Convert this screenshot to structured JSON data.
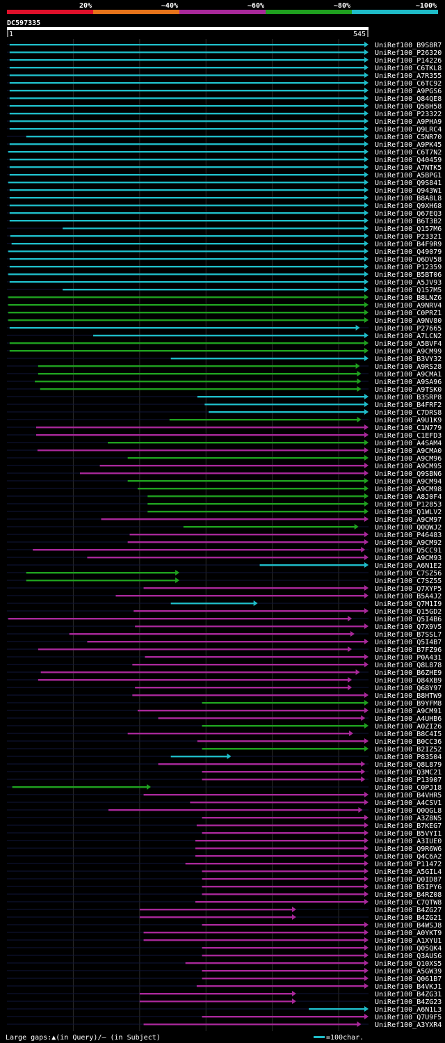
{
  "chart_data": {
    "type": "alignment-overview",
    "query_id": "DC597335",
    "query_start": "1",
    "query_end": "545",
    "query_length": 545,
    "gridlines_at": [
      100,
      200,
      300,
      400,
      500
    ],
    "legend": [
      {
        "label": "20%",
        "color": "#e0102a"
      },
      {
        "label": "~40%",
        "color": "#e6731a"
      },
      {
        "label": "~60%",
        "color": "#a8289a"
      },
      {
        "label": "~80%",
        "color": "#1fa01f"
      },
      {
        "label": "~100%",
        "color": "#1fbcc8"
      }
    ],
    "colors": {
      "cyan": "#1fbcc8",
      "green": "#1fa01f",
      "magenta": "#a8289a",
      "background": "#000000",
      "grid": "#2a2a2a"
    },
    "footer_text": "Large gaps:▲(in Query)/– (in Subject)",
    "scale_text": "=100char.",
    "hits": [
      {
        "name": "UniRef100_B9S8R7",
        "c": "cyan",
        "s": 4,
        "e": 545
      },
      {
        "name": "UniRef100_P26320",
        "c": "cyan",
        "s": 4,
        "e": 545
      },
      {
        "name": "UniRef100_P14226",
        "c": "cyan",
        "s": 4,
        "e": 545
      },
      {
        "name": "UniRef100_C6TKL8",
        "c": "cyan",
        "s": 4,
        "e": 545
      },
      {
        "name": "UniRef100_A7R355",
        "c": "cyan",
        "s": 4,
        "e": 545
      },
      {
        "name": "UniRef100_C6TC92",
        "c": "cyan",
        "s": 4,
        "e": 545
      },
      {
        "name": "UniRef100_A9PGS6",
        "c": "cyan",
        "s": 4,
        "e": 545
      },
      {
        "name": "UniRef100_Q84QE8",
        "c": "cyan",
        "s": 4,
        "e": 545
      },
      {
        "name": "UniRef100_Q58H58",
        "c": "cyan",
        "s": 4,
        "e": 545
      },
      {
        "name": "UniRef100_P23322",
        "c": "cyan",
        "s": 4,
        "e": 545
      },
      {
        "name": "UniRef100_A9PHA9",
        "c": "cyan",
        "s": 4,
        "e": 545
      },
      {
        "name": "UniRef100_Q9LRC4",
        "c": "cyan",
        "s": 4,
        "e": 545
      },
      {
        "name": "UniRef100_C5NR70",
        "c": "cyan",
        "s": 29,
        "e": 545
      },
      {
        "name": "UniRef100_A9PK45",
        "c": "cyan",
        "s": 4,
        "e": 545
      },
      {
        "name": "UniRef100_C6T7N2",
        "c": "cyan",
        "s": 2,
        "e": 545
      },
      {
        "name": "UniRef100_Q40459",
        "c": "cyan",
        "s": 4,
        "e": 545
      },
      {
        "name": "UniRef100_A7NTK5",
        "c": "cyan",
        "s": 4,
        "e": 545
      },
      {
        "name": "UniRef100_A5BPG1",
        "c": "cyan",
        "s": 4,
        "e": 545
      },
      {
        "name": "UniRef100_Q9S841",
        "c": "cyan",
        "s": 2,
        "e": 545
      },
      {
        "name": "UniRef100_Q943W1",
        "c": "cyan",
        "s": 4,
        "e": 545
      },
      {
        "name": "UniRef100_B8A8L8",
        "c": "cyan",
        "s": 4,
        "e": 545
      },
      {
        "name": "UniRef100_Q9XH68",
        "c": "cyan",
        "s": 4,
        "e": 545
      },
      {
        "name": "UniRef100_Q67EQ3",
        "c": "cyan",
        "s": 4,
        "e": 545
      },
      {
        "name": "UniRef100_B6T3B2",
        "c": "cyan",
        "s": 4,
        "e": 545
      },
      {
        "name": "UniRef100_Q157M6",
        "c": "cyan",
        "s": 84,
        "e": 545
      },
      {
        "name": "UniRef100_P23321",
        "c": "cyan",
        "s": 5,
        "e": 545
      },
      {
        "name": "UniRef100_B4F9R9",
        "c": "cyan",
        "s": 7,
        "e": 545
      },
      {
        "name": "UniRef100_Q49079",
        "c": "cyan",
        "s": 2,
        "e": 545
      },
      {
        "name": "UniRef100_Q6DV58",
        "c": "cyan",
        "s": 4,
        "e": 545
      },
      {
        "name": "UniRef100_P12359",
        "c": "cyan",
        "s": 4,
        "e": 545
      },
      {
        "name": "UniRef100_B5BT06",
        "c": "cyan",
        "s": 2,
        "e": 545
      },
      {
        "name": "UniRef100_A5JV93",
        "c": "cyan",
        "s": 4,
        "e": 545
      },
      {
        "name": "UniRef100_Q157M5",
        "c": "cyan",
        "s": 84,
        "e": 545
      },
      {
        "name": "UniRef100_B8LNZ6",
        "c": "green",
        "s": 2,
        "e": 545
      },
      {
        "name": "UniRef100_A9NRV4",
        "c": "green",
        "s": 2,
        "e": 545
      },
      {
        "name": "UniRef100_C0PRZ1",
        "c": "green",
        "s": 2,
        "e": 545
      },
      {
        "name": "UniRef100_A9NV80",
        "c": "green",
        "s": 2,
        "e": 545
      },
      {
        "name": "UniRef100_P27665",
        "c": "cyan",
        "s": 4,
        "e": 532
      },
      {
        "name": "UniRef100_A7LCN2",
        "c": "cyan",
        "s": 130,
        "e": 545
      },
      {
        "name": "UniRef100_A5BVF4",
        "c": "green",
        "s": 4,
        "e": 545
      },
      {
        "name": "UniRef100_A9CM99",
        "c": "green",
        "s": 4,
        "e": 545
      },
      {
        "name": "UniRef100_B3VY32",
        "c": "cyan",
        "s": 247,
        "e": 545
      },
      {
        "name": "UniRef100_A9RS28",
        "c": "green",
        "s": 47,
        "e": 532
      },
      {
        "name": "UniRef100_A9CMA1",
        "c": "green",
        "s": 47,
        "e": 534
      },
      {
        "name": "UniRef100_A9SA96",
        "c": "green",
        "s": 42,
        "e": 534
      },
      {
        "name": "UniRef100_A9TSK0",
        "c": "green",
        "s": 50,
        "e": 534
      },
      {
        "name": "UniRef100_B3SRP8",
        "c": "cyan",
        "s": 287,
        "e": 545
      },
      {
        "name": "UniRef100_B4FRF2",
        "c": "cyan",
        "s": 298,
        "e": 545
      },
      {
        "name": "UniRef100_C7DRS8",
        "c": "cyan",
        "s": 304,
        "e": 545
      },
      {
        "name": "UniRef100_A9U1K9",
        "c": "green",
        "s": 245,
        "e": 534
      },
      {
        "name": "UniRef100_C1N779",
        "c": "magenta",
        "s": 44,
        "e": 545
      },
      {
        "name": "UniRef100_C1EFD3",
        "c": "magenta",
        "s": 44,
        "e": 545
      },
      {
        "name": "UniRef100_A4SAM4",
        "c": "green",
        "s": 152,
        "e": 545
      },
      {
        "name": "UniRef100_A9CMA0",
        "c": "magenta",
        "s": 46,
        "e": 545
      },
      {
        "name": "UniRef100_A9CM96",
        "c": "green",
        "s": 182,
        "e": 545
      },
      {
        "name": "UniRef100_A9CM95",
        "c": "magenta",
        "s": 140,
        "e": 545
      },
      {
        "name": "UniRef100_Q9SBN6",
        "c": "magenta",
        "s": 110,
        "e": 545
      },
      {
        "name": "UniRef100_A9CM94",
        "c": "green",
        "s": 182,
        "e": 545
      },
      {
        "name": "UniRef100_A9CM98",
        "c": "green",
        "s": 197,
        "e": 545
      },
      {
        "name": "UniRef100_A8J0F4",
        "c": "green",
        "s": 212,
        "e": 545
      },
      {
        "name": "UniRef100_P12853",
        "c": "green",
        "s": 212,
        "e": 545
      },
      {
        "name": "UniRef100_Q1WLV2",
        "c": "green",
        "s": 212,
        "e": 545
      },
      {
        "name": "UniRef100_A9CM97",
        "c": "magenta",
        "s": 142,
        "e": 545
      },
      {
        "name": "UniRef100_Q0QWJ2",
        "c": "green",
        "s": 266,
        "e": 530
      },
      {
        "name": "UniRef100_P46483",
        "c": "magenta",
        "s": 185,
        "e": 545
      },
      {
        "name": "UniRef100_A9CM92",
        "c": "magenta",
        "s": 182,
        "e": 545
      },
      {
        "name": "UniRef100_Q5CC91",
        "c": "magenta",
        "s": 39,
        "e": 540
      },
      {
        "name": "UniRef100_A9CM93",
        "c": "magenta",
        "s": 121,
        "e": 545
      },
      {
        "name": "UniRef100_A6N1E2",
        "c": "cyan",
        "s": 381,
        "e": 545
      },
      {
        "name": "UniRef100_C7SZ56",
        "c": "green",
        "s": 29,
        "e": 260
      },
      {
        "name": "UniRef100_C7SZ55",
        "c": "green",
        "s": 29,
        "e": 260
      },
      {
        "name": "UniRef100_Q7XYP5",
        "c": "magenta",
        "s": 206,
        "e": 545
      },
      {
        "name": "UniRef100_B5A4J2",
        "c": "magenta",
        "s": 164,
        "e": 545
      },
      {
        "name": "UniRef100_Q7M1I9",
        "c": "cyan",
        "s": 247,
        "e": 378
      },
      {
        "name": "UniRef100_Q15GD2",
        "c": "magenta",
        "s": 191,
        "e": 545
      },
      {
        "name": "UniRef100_Q5I4B6",
        "c": "magenta",
        "s": 2,
        "e": 520
      },
      {
        "name": "UniRef100_Q7X9V5",
        "c": "magenta",
        "s": 193,
        "e": 545
      },
      {
        "name": "UniRef100_B7SSL7",
        "c": "magenta",
        "s": 94,
        "e": 524
      },
      {
        "name": "UniRef100_Q5I4B7",
        "c": "magenta",
        "s": 121,
        "e": 545
      },
      {
        "name": "UniRef100_B7FZ96",
        "c": "magenta",
        "s": 47,
        "e": 520
      },
      {
        "name": "UniRef100_P0A431",
        "c": "magenta",
        "s": 208,
        "e": 545
      },
      {
        "name": "UniRef100_Q8L878",
        "c": "magenta",
        "s": 189,
        "e": 545
      },
      {
        "name": "UniRef100_B6ZHE9",
        "c": "magenta",
        "s": 51,
        "e": 532
      },
      {
        "name": "UniRef100_Q84XB9",
        "c": "magenta",
        "s": 47,
        "e": 520
      },
      {
        "name": "UniRef100_Q68Y97",
        "c": "magenta",
        "s": 193,
        "e": 520
      },
      {
        "name": "UniRef100_B8HTW9",
        "c": "magenta",
        "s": 189,
        "e": 545
      },
      {
        "name": "UniRef100_B9YFM8",
        "c": "green",
        "s": 294,
        "e": 545
      },
      {
        "name": "UniRef100_A9CM91",
        "c": "magenta",
        "s": 197,
        "e": 545
      },
      {
        "name": "UniRef100_A4UHB6",
        "c": "magenta",
        "s": 228,
        "e": 540
      },
      {
        "name": "UniRef100_A0ZI26",
        "c": "green",
        "s": 294,
        "e": 545
      },
      {
        "name": "UniRef100_B8C4I5",
        "c": "magenta",
        "s": 182,
        "e": 522
      },
      {
        "name": "UniRef100_B0CC36",
        "c": "magenta",
        "s": 287,
        "e": 545
      },
      {
        "name": "UniRef100_B2IZ52",
        "c": "green",
        "s": 294,
        "e": 545
      },
      {
        "name": "UniRef100_P83504",
        "c": "cyan",
        "s": 247,
        "e": 338
      },
      {
        "name": "UniRef100_Q8L879",
        "c": "magenta",
        "s": 228,
        "e": 540
      },
      {
        "name": "UniRef100_Q3MC21",
        "c": "magenta",
        "s": 294,
        "e": 540
      },
      {
        "name": "UniRef100_P13907",
        "c": "magenta",
        "s": 294,
        "e": 540
      },
      {
        "name": "UniRef100_C0PJ18",
        "c": "green",
        "s": 8,
        "e": 217
      },
      {
        "name": "UniRef100_B4VHR5",
        "c": "magenta",
        "s": 206,
        "e": 545
      },
      {
        "name": "UniRef100_A4CSV1",
        "c": "magenta",
        "s": 276,
        "e": 545
      },
      {
        "name": "UniRef100_Q0QGL8",
        "c": "magenta",
        "s": 153,
        "e": 536
      },
      {
        "name": "UniRef100_A3Z8N5",
        "c": "magenta",
        "s": 294,
        "e": 545
      },
      {
        "name": "UniRef100_B7KEG7",
        "c": "magenta",
        "s": 286,
        "e": 545
      },
      {
        "name": "UniRef100_B5VYI1",
        "c": "magenta",
        "s": 294,
        "e": 545
      },
      {
        "name": "UniRef100_A3IUE0",
        "c": "magenta",
        "s": 284,
        "e": 545
      },
      {
        "name": "UniRef100_Q9R6W6",
        "c": "magenta",
        "s": 284,
        "e": 545
      },
      {
        "name": "UniRef100_Q4C6A2",
        "c": "magenta",
        "s": 284,
        "e": 545
      },
      {
        "name": "UniRef100_P11472",
        "c": "magenta",
        "s": 269,
        "e": 545
      },
      {
        "name": "UniRef100_A5GIL4",
        "c": "magenta",
        "s": 294,
        "e": 545
      },
      {
        "name": "UniRef100_Q0ID87",
        "c": "magenta",
        "s": 294,
        "e": 545
      },
      {
        "name": "UniRef100_B5IPY6",
        "c": "magenta",
        "s": 294,
        "e": 545
      },
      {
        "name": "UniRef100_B4RZ08",
        "c": "magenta",
        "s": 294,
        "e": 545
      },
      {
        "name": "UniRef100_C7QTW8",
        "c": "magenta",
        "s": 284,
        "e": 545
      },
      {
        "name": "UniRef100_B4ZG27",
        "c": "magenta",
        "s": 200,
        "e": 436
      },
      {
        "name": "UniRef100_B4ZG21",
        "c": "magenta",
        "s": 200,
        "e": 436
      },
      {
        "name": "UniRef100_B4WSJ8",
        "c": "magenta",
        "s": 294,
        "e": 545
      },
      {
        "name": "UniRef100_A0YKT9",
        "c": "magenta",
        "s": 206,
        "e": 545
      },
      {
        "name": "UniRef100_A1XYU1",
        "c": "magenta",
        "s": 206,
        "e": 545
      },
      {
        "name": "UniRef100_Q05QK4",
        "c": "magenta",
        "s": 294,
        "e": 545
      },
      {
        "name": "UniRef100_Q3AUS6",
        "c": "magenta",
        "s": 294,
        "e": 545
      },
      {
        "name": "UniRef100_Q10XS5",
        "c": "magenta",
        "s": 269,
        "e": 545
      },
      {
        "name": "UniRef100_A5GW39",
        "c": "magenta",
        "s": 294,
        "e": 545
      },
      {
        "name": "UniRef100_Q061B7",
        "c": "magenta",
        "s": 294,
        "e": 545
      },
      {
        "name": "UniRef100_B4VKJ1",
        "c": "magenta",
        "s": 286,
        "e": 545
      },
      {
        "name": "UniRef100_B4ZG31",
        "c": "magenta",
        "s": 200,
        "e": 436
      },
      {
        "name": "UniRef100_B4ZG23",
        "c": "magenta",
        "s": 200,
        "e": 436
      },
      {
        "name": "UniRef100_A6N1L3",
        "c": "cyan",
        "s": 455,
        "e": 545
      },
      {
        "name": "UniRef100_Q7U9F5",
        "c": "magenta",
        "s": 294,
        "e": 545
      },
      {
        "name": "UniRef100_A3YXR4",
        "c": "magenta",
        "s": 206,
        "e": 534
      }
    ]
  }
}
